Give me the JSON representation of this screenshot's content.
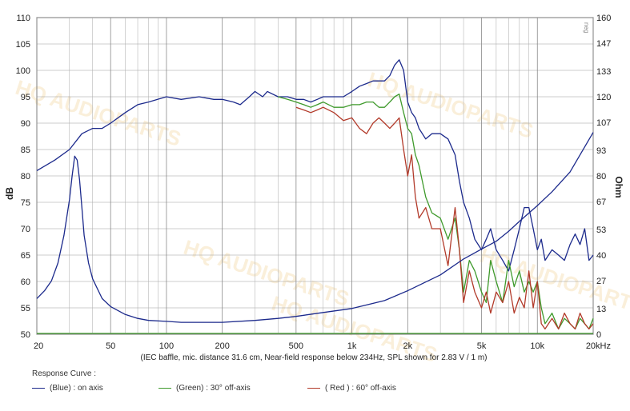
{
  "chart_data": {
    "type": "line",
    "title": "",
    "xlabel": "(IEC baffle, mic. distance 31.6 cm, Near-field response below 234Hz, SPL shown for 2.83 V / 1 m)",
    "ylabel": "dB",
    "y2label": "Ohm",
    "x_scale": "log",
    "xlim": [
      20,
      20000
    ],
    "ylim": [
      50,
      110
    ],
    "y2lim": [
      0,
      160
    ],
    "grid": true,
    "x_ticks": [
      20,
      50,
      100,
      200,
      500,
      1000,
      2000,
      5000,
      10000,
      20000
    ],
    "x_tick_labels": [
      "20",
      "50",
      "100",
      "200",
      "500",
      "1k",
      "2k",
      "5k",
      "10k",
      "20kHz"
    ],
    "y_ticks": [
      50,
      55,
      60,
      65,
      70,
      75,
      80,
      85,
      90,
      95,
      100,
      105,
      110
    ],
    "y2_ticks": [
      0,
      13,
      27,
      40,
      53,
      67,
      80,
      93,
      107,
      120,
      133,
      147,
      160
    ],
    "legend": {
      "title": "Response Curve :",
      "entries": [
        {
          "label": "(Blue)  : on axis",
          "color": "#1c2a8c"
        },
        {
          "label": "(Green) : 30° off-axis",
          "color": "#3f9a2c"
        },
        {
          "label": "( Red ) : 60° off-axis",
          "color": "#b23a2a"
        }
      ]
    },
    "side_label": "neg",
    "watermark": "HQ AUDIOPARTS",
    "series": [
      {
        "name": "(Blue)  : on axis",
        "axis": "left",
        "color": "#1c2a8c",
        "x": [
          20,
          25,
          30,
          35,
          40,
          45,
          50,
          60,
          70,
          80,
          100,
          120,
          150,
          180,
          200,
          230,
          250,
          280,
          300,
          330,
          350,
          400,
          450,
          500,
          550,
          600,
          650,
          700,
          800,
          900,
          1000,
          1100,
          1200,
          1300,
          1400,
          1500,
          1600,
          1700,
          1800,
          1900,
          2000,
          2100,
          2200,
          2300,
          2500,
          2700,
          3000,
          3300,
          3600,
          3800,
          4000,
          4300,
          4600,
          5000,
          5300,
          5600,
          6000,
          6500,
          7000,
          7500,
          8000,
          8500,
          9000,
          9500,
          10000,
          10500,
          11000,
          12000,
          13000,
          14000,
          15000,
          16000,
          17000,
          18000,
          19000,
          20000
        ],
        "y": [
          81,
          83,
          85,
          88,
          89,
          89,
          90,
          92,
          93.5,
          94,
          95,
          94.5,
          95,
          94.5,
          94.5,
          94,
          93.5,
          95,
          96,
          95,
          96,
          95,
          95,
          94.5,
          94.5,
          94,
          94.5,
          95,
          95,
          95,
          96,
          97,
          97.5,
          98,
          98,
          98,
          99,
          101,
          102,
          100,
          94,
          92,
          91,
          89,
          87,
          88,
          88,
          87,
          84,
          79,
          75,
          72,
          68,
          66,
          68,
          70,
          66,
          64,
          62,
          66,
          70,
          74,
          74,
          70,
          66,
          68,
          64,
          66,
          65,
          64,
          67,
          69,
          67,
          70,
          64,
          65
        ]
      },
      {
        "name": "(Green) : 30° off-axis",
        "axis": "left",
        "color": "#3f9a2c",
        "x": [
          400,
          450,
          500,
          550,
          600,
          650,
          700,
          800,
          900,
          1000,
          1100,
          1200,
          1300,
          1400,
          1500,
          1600,
          1700,
          1800,
          1900,
          2000,
          2100,
          2200,
          2300,
          2500,
          2700,
          3000,
          3300,
          3600,
          3800,
          4000,
          4300,
          4600,
          5000,
          5300,
          5600,
          6000,
          6500,
          7000,
          7500,
          8000,
          8500,
          9000,
          9500,
          10000,
          10500,
          11000,
          12000,
          13000,
          14000,
          15000,
          16000,
          17000,
          18000,
          19000,
          20000
        ],
        "y": [
          95,
          94.5,
          94,
          93.5,
          93,
          93.5,
          94,
          93,
          93,
          93.5,
          93.5,
          94,
          94,
          93,
          93,
          94,
          95,
          95.5,
          92,
          89,
          88,
          84,
          82,
          76,
          73,
          72,
          68,
          72,
          66,
          58,
          64,
          62,
          58,
          56,
          64,
          60,
          56,
          64,
          59,
          62,
          58,
          60,
          58,
          60,
          55,
          52,
          54,
          51,
          53,
          52,
          51,
          53,
          52,
          51,
          53
        ]
      },
      {
        "name": "( Red ) : 60° off-axis",
        "axis": "left",
        "color": "#b23a2a",
        "x": [
          500,
          550,
          600,
          650,
          700,
          800,
          900,
          1000,
          1100,
          1200,
          1300,
          1400,
          1500,
          1600,
          1700,
          1800,
          1900,
          2000,
          2100,
          2200,
          2300,
          2500,
          2700,
          3000,
          3300,
          3600,
          3800,
          4000,
          4300,
          4600,
          5000,
          5300,
          5600,
          6000,
          6500,
          7000,
          7500,
          8000,
          8500,
          9000,
          9500,
          10000,
          10500,
          11000,
          12000,
          13000,
          14000,
          15000,
          16000,
          17000,
          18000,
          19000,
          20000
        ],
        "y": [
          93,
          92.5,
          92,
          92.5,
          93,
          92,
          90.5,
          91,
          89,
          88,
          90,
          91,
          90,
          89,
          90,
          91,
          85,
          80,
          84,
          76,
          72,
          74,
          70,
          70,
          63,
          74,
          66,
          56,
          62,
          58,
          55,
          58,
          54,
          58,
          56,
          60,
          54,
          57,
          55,
          62,
          55,
          60,
          52,
          51,
          53,
          51,
          54,
          52,
          51,
          54,
          52,
          51,
          52
        ]
      },
      {
        "name": "impedance",
        "axis": "right",
        "color": "#1c2a8c",
        "x": [
          20,
          22,
          24,
          26,
          28,
          30,
          31,
          32,
          33,
          34,
          35,
          36,
          38,
          40,
          45,
          50,
          60,
          70,
          80,
          100,
          120,
          150,
          200,
          300,
          400,
          500,
          700,
          1000,
          1500,
          2000,
          3000,
          4000,
          5000,
          6000,
          7000,
          8000,
          10000,
          12000,
          15000,
          20000
        ],
        "y": [
          18,
          22,
          27,
          36,
          50,
          68,
          80,
          90,
          88,
          78,
          64,
          50,
          36,
          28,
          18,
          14,
          10,
          8,
          7,
          6.5,
          6,
          6,
          6,
          7,
          8,
          9,
          11,
          13,
          17,
          22,
          30,
          38,
          43,
          47,
          52,
          57,
          65,
          72,
          82,
          102
        ]
      }
    ]
  }
}
